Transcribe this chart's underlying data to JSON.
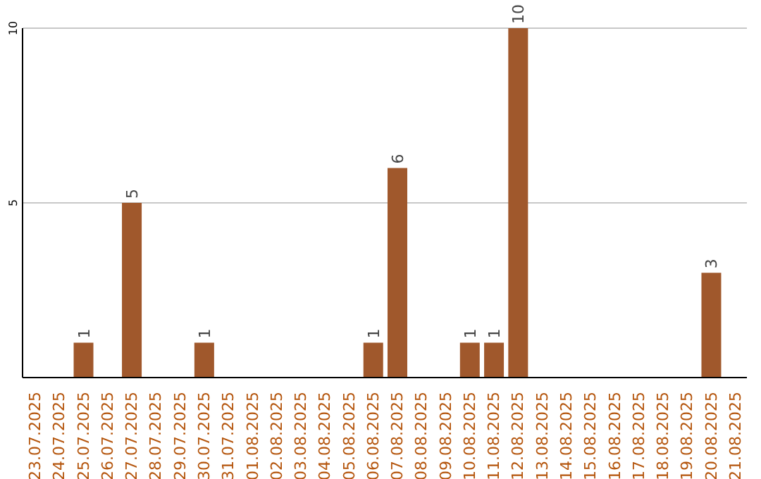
{
  "chart_data": {
    "type": "bar",
    "categories": [
      "23.07.2025",
      "24.07.2025",
      "25.07.2025",
      "26.07.2025",
      "27.07.2025",
      "28.07.2025",
      "29.07.2025",
      "30.07.2025",
      "31.07.2025",
      "01.08.2025",
      "02.08.2025",
      "03.08.2025",
      "04.08.2025",
      "05.08.2025",
      "06.08.2025",
      "07.08.2025",
      "08.08.2025",
      "09.08.2025",
      "10.08.2025",
      "11.08.2025",
      "12.08.2025",
      "13.08.2025",
      "14.08.2025",
      "15.08.2025",
      "16.08.2025",
      "17.08.2025",
      "18.08.2025",
      "19.08.2025",
      "20.08.2025",
      "21.08.2025"
    ],
    "values": [
      0,
      0,
      1,
      0,
      5,
      0,
      0,
      1,
      0,
      0,
      0,
      0,
      0,
      0,
      1,
      6,
      0,
      0,
      1,
      1,
      10,
      0,
      0,
      0,
      0,
      0,
      0,
      0,
      3,
      0
    ],
    "value_labels": [
      null,
      null,
      "1",
      null,
      "5",
      null,
      null,
      "1",
      null,
      null,
      null,
      null,
      null,
      null,
      "1",
      "6",
      null,
      null,
      "1",
      "1",
      "10",
      null,
      null,
      null,
      null,
      null,
      null,
      null,
      "3",
      null
    ],
    "color": "#a0582c",
    "ylim": [
      0,
      10
    ],
    "yticks": [
      5,
      10
    ],
    "grid": "y",
    "legend": false
  }
}
